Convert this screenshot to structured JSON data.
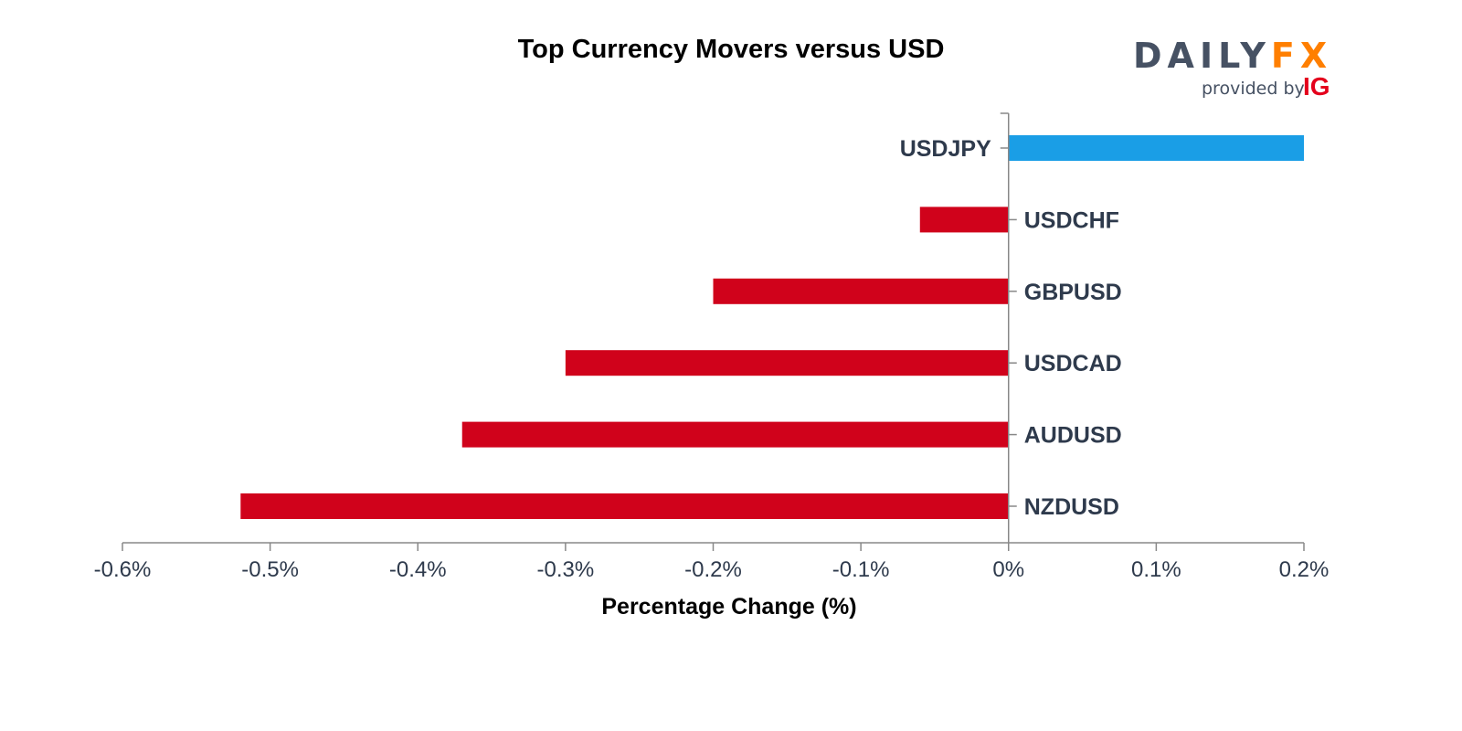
{
  "chart_data": {
    "type": "bar",
    "orientation": "horizontal",
    "title": "Top Currency Movers versus USD",
    "xlabel": "Percentage Change (%)",
    "ylabel": "",
    "categories": [
      "USDJPY",
      "USDCHF",
      "GBPUSD",
      "USDCAD",
      "AUDUSD",
      "NZDUSD"
    ],
    "values": [
      0.2,
      -0.06,
      -0.2,
      -0.3,
      -0.37,
      -0.52
    ],
    "xlim": [
      -0.6,
      0.2
    ],
    "x_ticks": [
      -0.6,
      -0.5,
      -0.4,
      -0.3,
      -0.2,
      -0.1,
      0,
      0.1,
      0.2
    ],
    "x_tick_labels": [
      "-0.6%",
      "-0.5%",
      "-0.4%",
      "-0.3%",
      "-0.2%",
      "-0.1%",
      "0%",
      "0.1%",
      "0.2%"
    ],
    "grid": false,
    "colors": {
      "positive": "#1a9ee6",
      "negative": "#d0021b",
      "axis": "#888888",
      "label": "#2e3a4c"
    }
  },
  "logo": {
    "brand_left": "DAILY",
    "brand_right": "FX",
    "provided_by": "provided by",
    "ig": "IG"
  }
}
